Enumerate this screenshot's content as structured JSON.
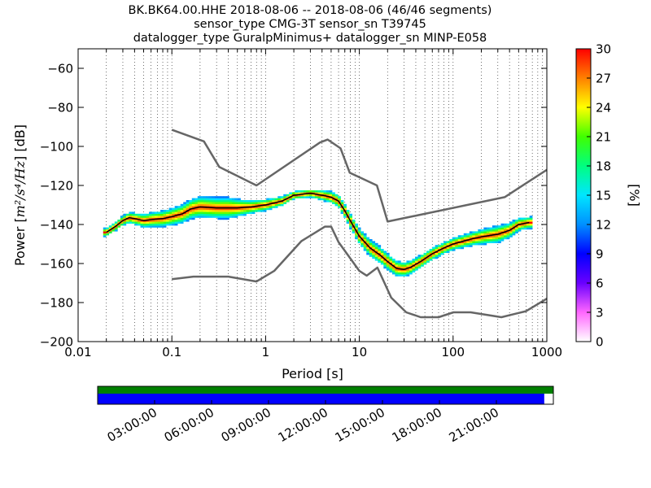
{
  "title": {
    "line1": "BK.BK64.00.HHE   2018-08-06 -- 2018-08-06  (46/46 segments)",
    "line2": "sensor_type CMG-3T sensor_sn T39745",
    "line3": "datalogger_type GuralpMinimus+ datalogger_sn MINP-E058"
  },
  "chart_data": {
    "type": "heatmap",
    "xlabel": "Period [s]",
    "ylabel_prefix": "Power [",
    "ylabel_math": "m²/s⁴/Hz",
    "ylabel_suffix": "] [dB]",
    "x_scale": "log",
    "xlim": [
      0.01,
      1000
    ],
    "ylim": [
      -200,
      -50
    ],
    "x_ticks": [
      {
        "v": 0.01,
        "label": "0.01"
      },
      {
        "v": 0.1,
        "label": "0.1"
      },
      {
        "v": 1,
        "label": "1"
      },
      {
        "v": 10,
        "label": "10"
      },
      {
        "v": 100,
        "label": "100"
      },
      {
        "v": 1000,
        "label": "1000"
      }
    ],
    "y_ticks": [
      {
        "v": -60,
        "label": "−60"
      },
      {
        "v": -80,
        "label": "−80"
      },
      {
        "v": -100,
        "label": "−100"
      },
      {
        "v": -120,
        "label": "−120"
      },
      {
        "v": -140,
        "label": "−140"
      },
      {
        "v": -160,
        "label": "−160"
      },
      {
        "v": -180,
        "label": "−180"
      },
      {
        "v": -200,
        "label": "−200"
      }
    ],
    "grid": "dotted vertical",
    "colorbar": {
      "label": "[%]",
      "range": [
        0,
        30
      ],
      "ticks": [
        "0",
        "3",
        "6",
        "9",
        "12",
        "15",
        "18",
        "21",
        "24",
        "27",
        "30"
      ]
    },
    "nhnm": [
      [
        0.1,
        -91.5
      ],
      [
        0.22,
        -97.4
      ],
      [
        0.32,
        -110.5
      ],
      [
        0.8,
        -120
      ],
      [
        3.8,
        -98
      ],
      [
        4.6,
        -96.5
      ],
      [
        6.3,
        -101
      ],
      [
        7.9,
        -113.5
      ],
      [
        15.4,
        -120
      ],
      [
        20,
        -138.5
      ],
      [
        354.8,
        -126
      ],
      [
        1000,
        -112
      ]
    ],
    "nlnm": [
      [
        0.1,
        -168
      ],
      [
        0.17,
        -166.7
      ],
      [
        0.4,
        -166.7
      ],
      [
        0.8,
        -169.2
      ],
      [
        1.24,
        -163.7
      ],
      [
        2.4,
        -148.6
      ],
      [
        4.3,
        -141.1
      ],
      [
        5,
        -141.1
      ],
      [
        6,
        -149
      ],
      [
        10,
        -163.8
      ],
      [
        12,
        -166.2
      ],
      [
        15.6,
        -162.1
      ],
      [
        21.9,
        -177.5
      ],
      [
        31.6,
        -185
      ],
      [
        45,
        -187.5
      ],
      [
        70,
        -187.5
      ],
      [
        101,
        -185
      ],
      [
        154,
        -185
      ],
      [
        328,
        -187.5
      ],
      [
        600,
        -184.4
      ],
      [
        1000,
        -178
      ]
    ],
    "mode": [
      [
        0.02,
        -144
      ],
      [
        0.025,
        -141
      ],
      [
        0.03,
        -138
      ],
      [
        0.035,
        -136.5
      ],
      [
        0.04,
        -137
      ],
      [
        0.05,
        -138
      ],
      [
        0.06,
        -137.5
      ],
      [
        0.08,
        -137
      ],
      [
        0.1,
        -136
      ],
      [
        0.13,
        -134.5
      ],
      [
        0.16,
        -132
      ],
      [
        0.2,
        -131
      ],
      [
        0.3,
        -131.5
      ],
      [
        0.5,
        -131.5
      ],
      [
        0.7,
        -131
      ],
      [
        1,
        -130
      ],
      [
        1.5,
        -128
      ],
      [
        2,
        -125
      ],
      [
        3,
        -124
      ],
      [
        4,
        -125
      ],
      [
        5,
        -126
      ],
      [
        6,
        -128
      ],
      [
        7,
        -133
      ],
      [
        8,
        -138
      ],
      [
        10,
        -146
      ],
      [
        13,
        -152
      ],
      [
        17,
        -156
      ],
      [
        20,
        -159
      ],
      [
        25,
        -162.5
      ],
      [
        30,
        -163
      ],
      [
        35,
        -162
      ],
      [
        45,
        -159
      ],
      [
        60,
        -155
      ],
      [
        80,
        -152
      ],
      [
        100,
        -150
      ],
      [
        130,
        -148.5
      ],
      [
        170,
        -147
      ],
      [
        220,
        -146
      ],
      [
        300,
        -145
      ],
      [
        400,
        -143
      ],
      [
        500,
        -140
      ],
      [
        650,
        -139
      ]
    ],
    "spread": [
      [
        0.02,
        1.5
      ],
      [
        0.03,
        2
      ],
      [
        0.05,
        3
      ],
      [
        0.1,
        4
      ],
      [
        0.2,
        5
      ],
      [
        0.4,
        5
      ],
      [
        0.7,
        3
      ],
      [
        1,
        2.5
      ],
      [
        2,
        1.5
      ],
      [
        3,
        1.5
      ],
      [
        5,
        2.5
      ],
      [
        7,
        3
      ],
      [
        10,
        3.5
      ],
      [
        15,
        4
      ],
      [
        25,
        3.5
      ],
      [
        40,
        3
      ],
      [
        80,
        2.5
      ],
      [
        150,
        3
      ],
      [
        300,
        4
      ],
      [
        600,
        2.5
      ]
    ],
    "timeline": {
      "ticks": [
        "03:00:00",
        "06:00:00",
        "09:00:00",
        "12:00:00",
        "15:00:00",
        "18:00:00",
        "21:00:00"
      ],
      "tick_hours": [
        3,
        6,
        9,
        12,
        15,
        18,
        21
      ],
      "span_hours": 24,
      "data_coverage_fraction": 1.0,
      "psd_coverage_fraction": 0.98,
      "data_color": "#008000",
      "psd_color": "#0000ff"
    }
  }
}
